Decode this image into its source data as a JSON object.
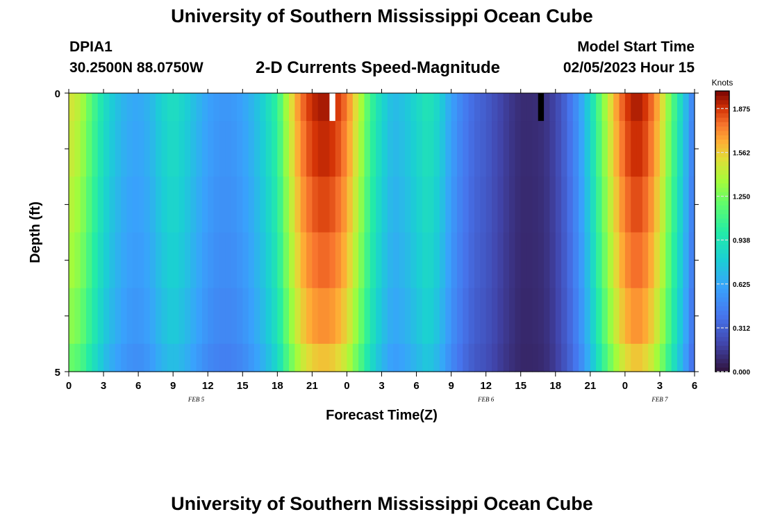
{
  "header": {
    "title": "University of Southern Mississippi Ocean Cube",
    "station": "DPIA1",
    "coords": "30.2500N  88.0750W",
    "subtitle": "2-D Currents Speed-Magnitude",
    "model_label": "Model Start Time",
    "model_time": "02/05/2023 Hour 15"
  },
  "footer": {
    "title": "University of Southern Mississippi Ocean Cube"
  },
  "chart_data": {
    "type": "heatmap",
    "title": "2-D Currents Speed-Magnitude",
    "xlabel": "Forecast Time(Z)",
    "ylabel": "Depth (ft)",
    "x_ticks": [
      "0",
      "3",
      "6",
      "9",
      "12",
      "15",
      "18",
      "21",
      "0",
      "3",
      "6",
      "9",
      "12",
      "15",
      "18",
      "21",
      "0",
      "3",
      "6"
    ],
    "y_ticks": [
      "0",
      "5"
    ],
    "date_labels": [
      {
        "text": "FEB 5",
        "hour": 11
      },
      {
        "text": "FEB 6",
        "hour": 36
      },
      {
        "text": "FEB 7",
        "hour": 51
      }
    ],
    "x_range_hours": [
      0,
      54
    ],
    "y_range_ft": [
      0,
      5
    ],
    "layer_depths_ft": [
      0,
      0.5,
      1.5,
      2.5,
      3.5,
      4.5
    ],
    "speed_profile_hours": [
      0,
      1,
      2,
      3,
      4,
      5,
      6,
      7,
      8,
      9,
      10,
      11,
      12,
      13,
      14,
      15,
      16,
      17,
      18,
      19,
      20,
      21,
      22,
      23,
      24,
      25,
      26,
      27,
      28,
      29,
      30,
      31,
      32,
      33,
      34,
      35,
      36,
      37,
      38,
      39,
      40,
      41,
      42,
      43,
      44,
      45,
      46,
      47,
      48,
      49,
      50,
      51,
      52,
      53,
      54
    ],
    "speed_profile_knots": [
      1.5,
      1.4,
      1.15,
      0.9,
      0.75,
      0.65,
      0.62,
      0.68,
      0.82,
      0.9,
      0.82,
      0.7,
      0.6,
      0.55,
      0.55,
      0.6,
      0.7,
      0.85,
      1.05,
      1.45,
      1.75,
      1.9,
      1.95,
      1.9,
      1.75,
      1.45,
      1.1,
      0.85,
      0.7,
      0.75,
      0.85,
      0.95,
      0.82,
      0.6,
      0.45,
      0.35,
      0.3,
      0.22,
      0.15,
      0.1,
      0.1,
      0.12,
      0.2,
      0.35,
      0.55,
      0.85,
      1.25,
      1.6,
      1.85,
      1.95,
      1.85,
      1.6,
      1.2,
      0.8,
      0.4
    ],
    "depth_factors": [
      1.0,
      0.98,
      0.95,
      0.92,
      0.88,
      0.82
    ],
    "missing_cells": [
      {
        "hour": 22.5,
        "layer": 0,
        "color": "#ffffff"
      },
      {
        "hour": 40.5,
        "layer": 0,
        "color": "#000000"
      }
    ],
    "colorbar": {
      "label": "Knots",
      "ticks": [
        "0.000",
        "0.312",
        "0.625",
        "0.938",
        "1.250",
        "1.562",
        "1.875"
      ],
      "range": [
        0,
        2.0
      ]
    }
  }
}
